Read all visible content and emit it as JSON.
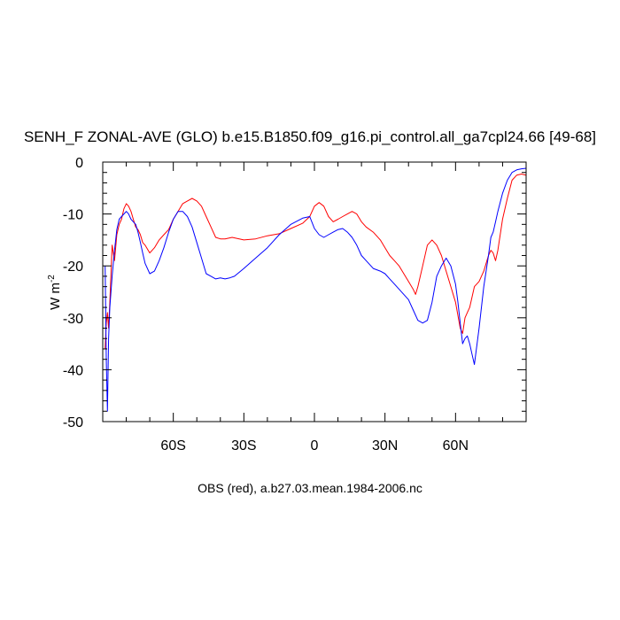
{
  "chart_data": {
    "type": "line",
    "title": "SENH_F ZONAL-AVE (GLO) b.e15.B1850.f09_g16.pi_control.all_ga7cpl24.66 [49-68]",
    "xlabel": "OBS (red), a.b27.03.mean.1984-2006.nc",
    "ylabel": "W m",
    "ylabel_sup": "-2",
    "xlim": [
      -90,
      90
    ],
    "ylim": [
      -50,
      0
    ],
    "x_tick_values": [
      -60,
      -30,
      0,
      30,
      60
    ],
    "x_tick_labels": [
      "60S",
      "30S",
      "0",
      "30N",
      "60N"
    ],
    "y_tick_values": [
      0,
      -10,
      -20,
      -30,
      -40,
      -50
    ],
    "y_tick_labels": [
      "0",
      "-10",
      "-20",
      "-30",
      "-40",
      "-50"
    ],
    "grid": false,
    "series": [
      {
        "color": "#ff0000",
        "x": [
          -89,
          -88.5,
          -88,
          -87.5,
          -87,
          -86,
          -85,
          -84,
          -83,
          -82,
          -81,
          -80,
          -79,
          -78,
          -77,
          -76,
          -75,
          -74,
          -73,
          -72,
          -70,
          -68,
          -66,
          -64,
          -62,
          -60,
          -58,
          -56,
          -54,
          -52,
          -50,
          -48,
          -46,
          -44,
          -42,
          -40,
          -38,
          -35,
          -30,
          -25,
          -20,
          -15,
          -10,
          -5,
          -2,
          0,
          2,
          4,
          6,
          8,
          10,
          12,
          14,
          16,
          18,
          20,
          22,
          25,
          28,
          30,
          32,
          34,
          36,
          38,
          40,
          42,
          43,
          44,
          46,
          48,
          50,
          52,
          54,
          56,
          58,
          60,
          62,
          63,
          64,
          65,
          66,
          68,
          70,
          72,
          74,
          75,
          76,
          77,
          78,
          80,
          82,
          84,
          86,
          88,
          90
        ],
        "y": [
          -36,
          -31,
          -29,
          -32,
          -27,
          -16,
          -19,
          -14,
          -12,
          -11,
          -9,
          -8,
          -8.5,
          -9.5,
          -11,
          -12.5,
          -13,
          -14,
          -15.5,
          -16,
          -17.5,
          -16.5,
          -15,
          -14,
          -13,
          -11,
          -9.5,
          -8,
          -7.5,
          -7,
          -7.5,
          -8.5,
          -10.5,
          -12.5,
          -14.5,
          -14.8,
          -14.8,
          -14.5,
          -15,
          -14.8,
          -14.2,
          -13.8,
          -12.8,
          -11.8,
          -10.5,
          -8.5,
          -7.8,
          -8.5,
          -10.5,
          -11.5,
          -11,
          -10.5,
          -10,
          -9.5,
          -10,
          -11.5,
          -12.5,
          -13.5,
          -15,
          -16.5,
          -18,
          -19,
          -20,
          -21.5,
          -23,
          -24.5,
          -25.5,
          -24,
          -20,
          -16,
          -15,
          -16,
          -18,
          -21,
          -24,
          -27,
          -32,
          -33,
          -30,
          -29,
          -28,
          -24,
          -23,
          -21,
          -18,
          -17,
          -17.5,
          -19,
          -17,
          -11,
          -7,
          -3.5,
          -2.5,
          -2.3,
          -2.5
        ]
      },
      {
        "color": "#0000ff",
        "x": [
          -89,
          -88.5,
          -88,
          -87.5,
          -87,
          -86,
          -85,
          -84,
          -83,
          -82,
          -81,
          -80,
          -79,
          -78,
          -77,
          -76,
          -75,
          -74,
          -73,
          -72,
          -70,
          -68,
          -66,
          -64,
          -62,
          -60,
          -58,
          -56,
          -54,
          -52,
          -50,
          -48,
          -46,
          -44,
          -42,
          -40,
          -38,
          -36,
          -34,
          -30,
          -25,
          -20,
          -15,
          -10,
          -5,
          -2,
          0,
          2,
          4,
          6,
          8,
          10,
          12,
          14,
          16,
          18,
          20,
          22,
          25,
          28,
          30,
          32,
          34,
          36,
          38,
          40,
          42,
          44,
          46,
          48,
          50,
          52,
          54,
          56,
          58,
          60,
          61,
          62,
          63,
          64,
          65,
          66,
          67,
          68,
          70,
          72,
          74,
          75,
          76,
          77,
          78,
          80,
          82,
          84,
          86,
          88,
          90
        ],
        "y": [
          -20,
          -38,
          -48,
          -34,
          -28,
          -22,
          -17,
          -13,
          -11,
          -10.5,
          -10,
          -9.5,
          -10,
          -11,
          -11.5,
          -12,
          -13.5,
          -15.5,
          -17.5,
          -19.5,
          -21.5,
          -21,
          -19,
          -16.5,
          -13.5,
          -11,
          -9.5,
          -9.5,
          -10.5,
          -12.5,
          -15.5,
          -18.5,
          -21.5,
          -22,
          -22.5,
          -22.3,
          -22.5,
          -22.3,
          -22,
          -20.5,
          -18.5,
          -16.5,
          -14,
          -12,
          -10.8,
          -10.5,
          -12.8,
          -14,
          -14.5,
          -14,
          -13.5,
          -13,
          -12.8,
          -13.5,
          -14.5,
          -16,
          -18,
          -19,
          -20.5,
          -21,
          -21.5,
          -22.5,
          -23.5,
          -24.5,
          -25.5,
          -26.5,
          -28.5,
          -30.5,
          -31,
          -30.5,
          -27,
          -22,
          -20,
          -18.5,
          -20,
          -23.5,
          -27,
          -31,
          -35,
          -34,
          -33.5,
          -35,
          -37,
          -39,
          -32,
          -24,
          -18,
          -14.5,
          -13.5,
          -11.5,
          -9.5,
          -6,
          -3.5,
          -2,
          -1.5,
          -1.3,
          -1.2
        ]
      }
    ]
  }
}
